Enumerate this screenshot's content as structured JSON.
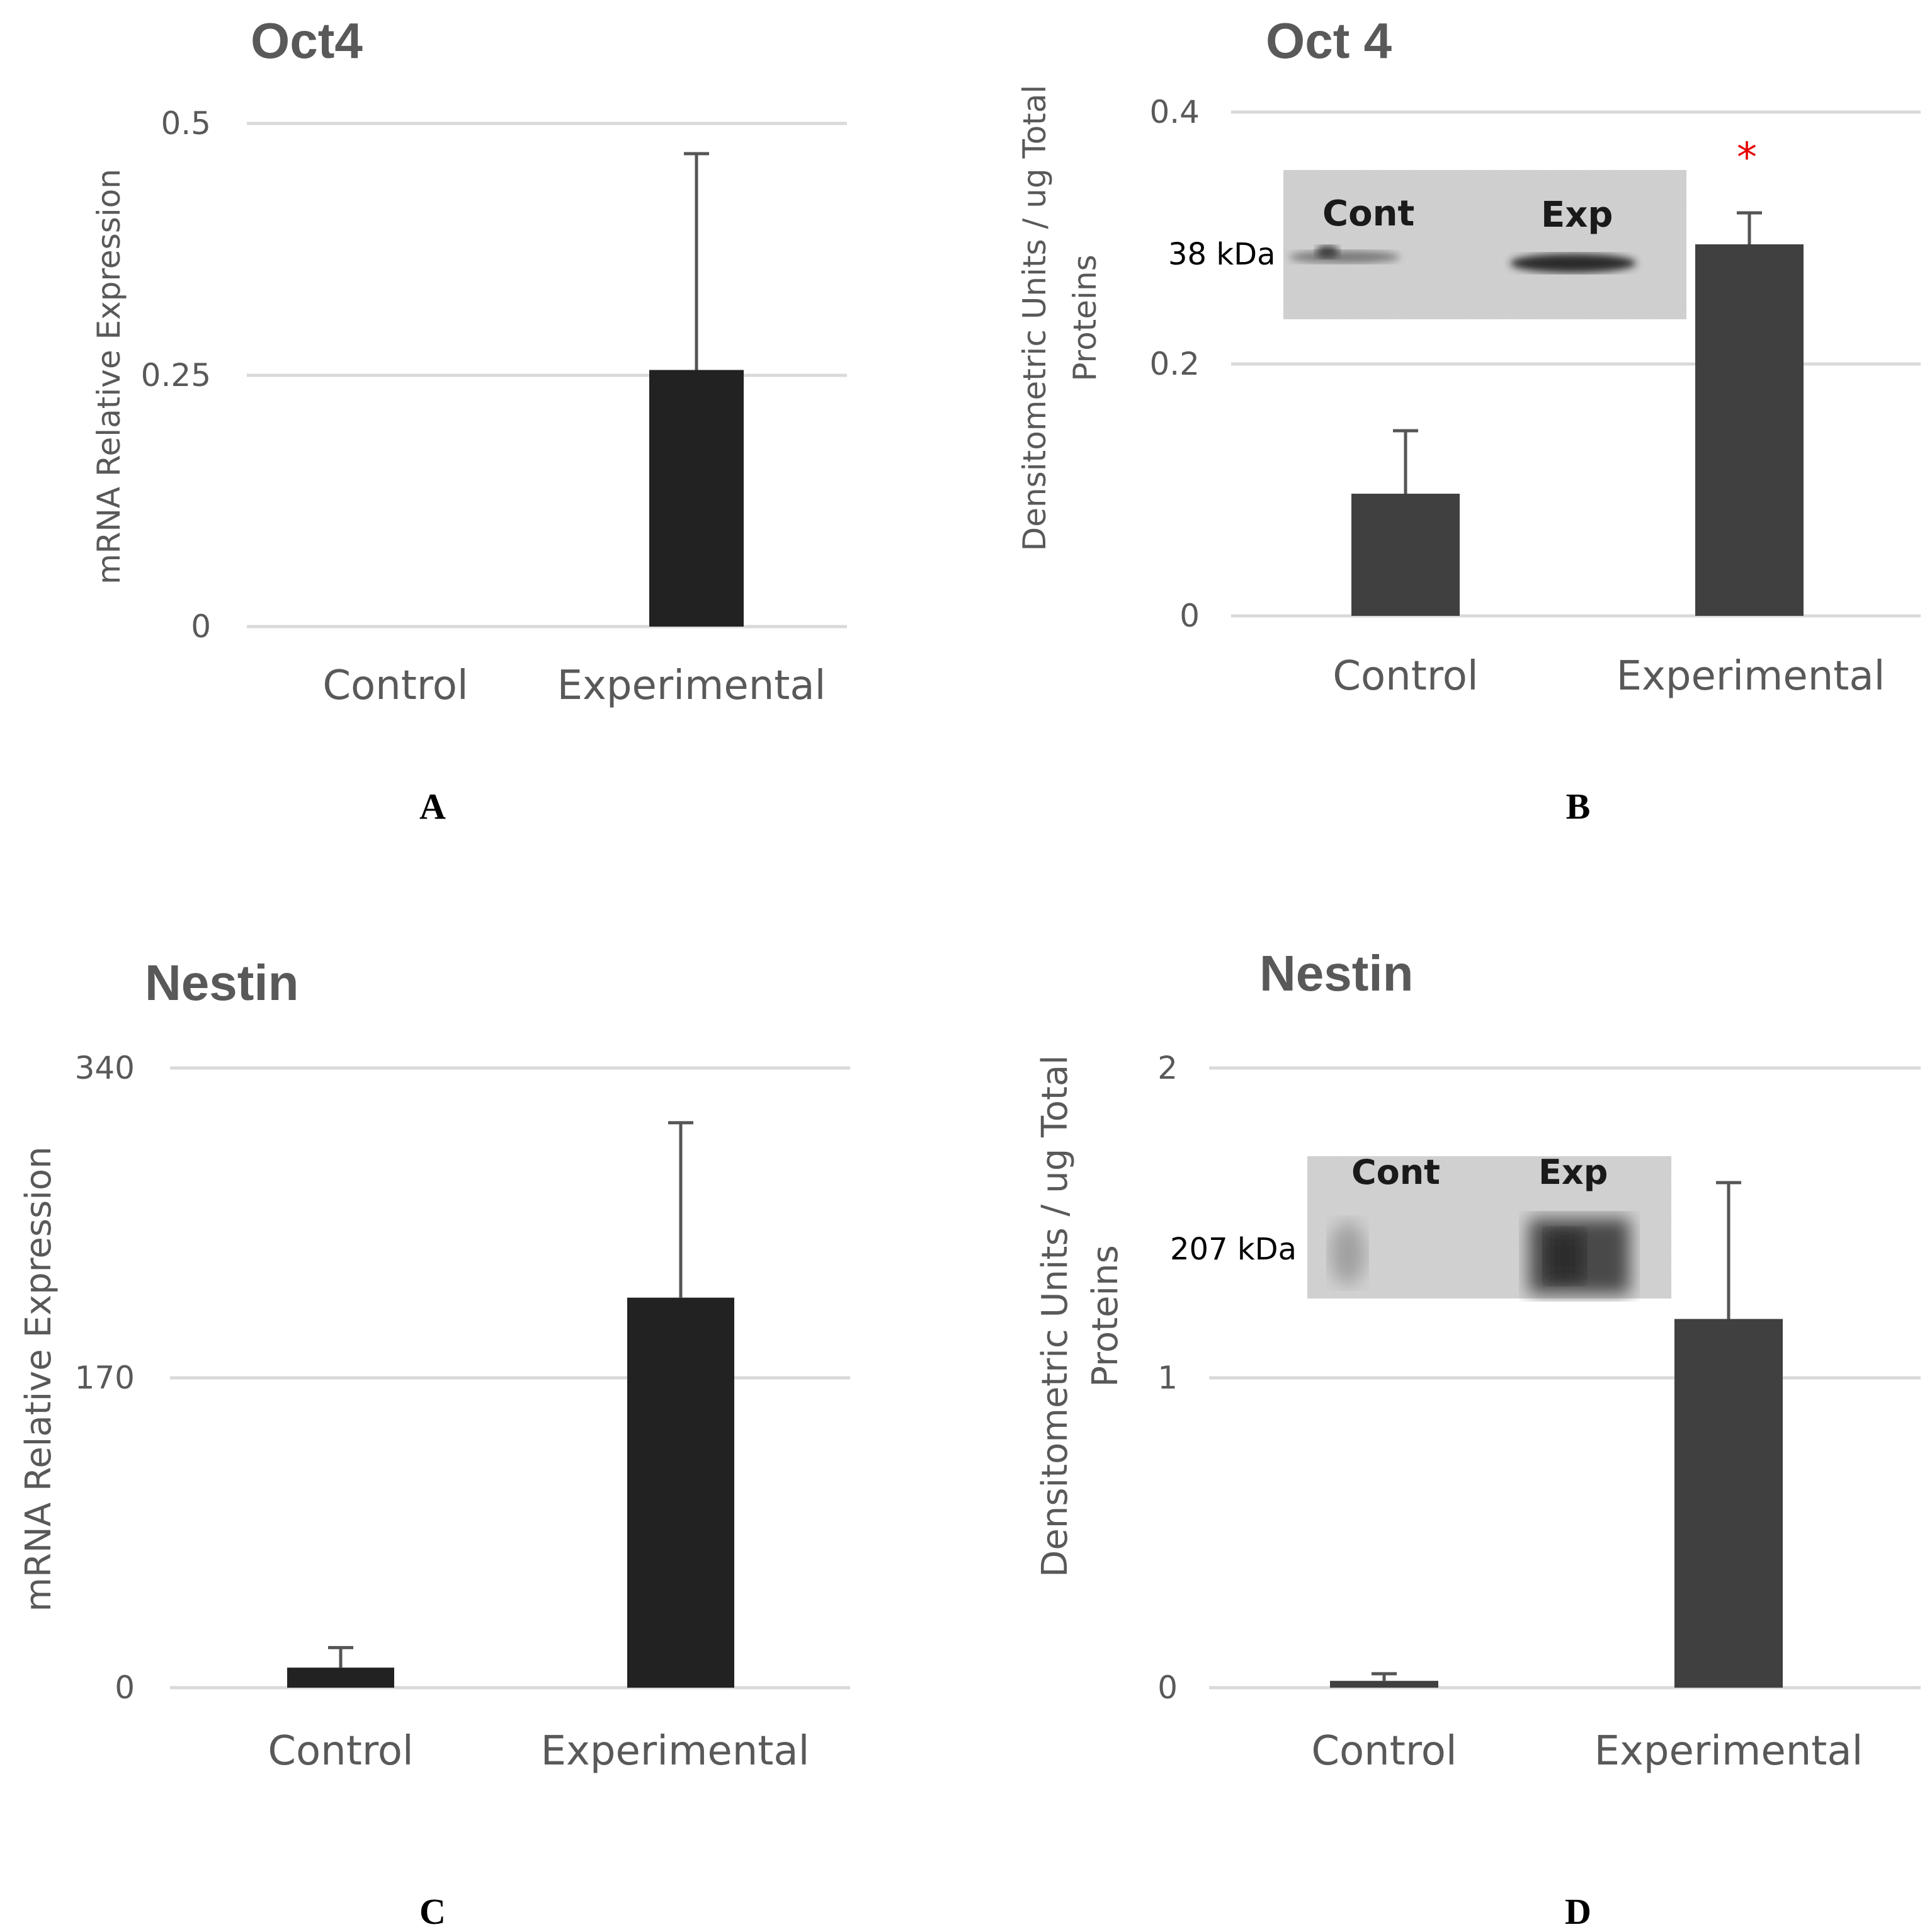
{
  "chart_data": [
    {
      "type": "bar",
      "panel_label": "A",
      "title": "Oct4",
      "ylabel": "mRNA Relative Expression",
      "categories": [
        "Control",
        "Experimental"
      ],
      "values": [
        0,
        0.255
      ],
      "error_upper": [
        null,
        0.47
      ],
      "ylim": [
        0,
        0.5
      ],
      "yticks": [
        "0",
        "0.25",
        "0.5"
      ],
      "ytick_values": [
        0,
        0.25,
        0.5
      ],
      "bar_color": "#222222",
      "gridlines": true
    },
    {
      "type": "bar",
      "panel_label": "B",
      "title": "Oct 4",
      "ylabel_lines": [
        "Densitometric Units / ug Total",
        "Proteins"
      ],
      "categories": [
        "Control",
        "Experimental"
      ],
      "values": [
        0.097,
        0.295
      ],
      "error_upper": [
        0.147,
        0.32
      ],
      "ylim": [
        0,
        0.4
      ],
      "yticks": [
        "0",
        "0.2",
        "0.4"
      ],
      "ytick_values": [
        0,
        0.2,
        0.4
      ],
      "bar_color": "#404040",
      "gridlines": true,
      "significance": {
        "category": "Experimental",
        "mark": "*",
        "color": "#e60000"
      },
      "blot": {
        "lanes": [
          "Cont",
          "Exp"
        ],
        "size_label": "38 kDa"
      }
    },
    {
      "type": "bar",
      "panel_label": "C",
      "title": "Nestin",
      "ylabel": "mRNA Relative Expression",
      "categories": [
        "Control",
        "Experimental"
      ],
      "values": [
        11,
        214
      ],
      "error_upper": [
        22,
        310
      ],
      "ylim": [
        0,
        340
      ],
      "yticks": [
        "0",
        "170",
        "340"
      ],
      "ytick_values": [
        0,
        170,
        340
      ],
      "bar_color": "#222222",
      "gridlines": true
    },
    {
      "type": "bar",
      "panel_label": "D",
      "title": "Nestin",
      "ylabel_lines": [
        "Densitometric Units / ug Total",
        "Proteins"
      ],
      "categories": [
        "Control",
        "Experimental"
      ],
      "values": [
        0.022,
        1.19
      ],
      "error_upper": [
        0.045,
        1.63
      ],
      "ylim": [
        0,
        2
      ],
      "yticks": [
        "0",
        "1",
        "2"
      ],
      "ytick_values": [
        0,
        1,
        2
      ],
      "bar_color": "#404040",
      "gridlines": true,
      "blot": {
        "lanes": [
          "Cont",
          "Exp"
        ],
        "size_label": "207 kDa"
      }
    }
  ]
}
